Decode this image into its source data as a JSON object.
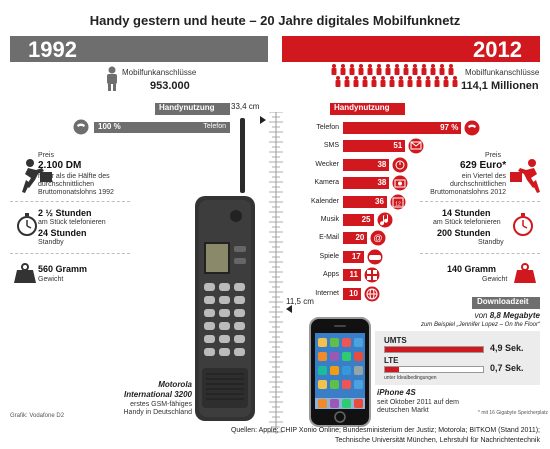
{
  "header": {
    "title": "Handy gestern und heute – 20 Jahre digitales Mobilfunknetz",
    "year_left": "1992",
    "year_right": "2012"
  },
  "subscriptions": {
    "label": "Mobilfunkanschlüsse",
    "left_value": "953.000",
    "right_value": "114,1 Millionen"
  },
  "usage": {
    "header": "Handynutzung",
    "left_row": {
      "label": "Telefon",
      "value": "100 %"
    },
    "rows": [
      {
        "label": "Telefon",
        "value": "97 %",
        "pct": 97,
        "icon": "phone-icon"
      },
      {
        "label": "SMS",
        "value": "51",
        "pct": 51,
        "icon": "envelope-icon"
      },
      {
        "label": "Wecker",
        "value": "38",
        "pct": 38,
        "icon": "alarm-clock-icon"
      },
      {
        "label": "Kamera",
        "value": "38",
        "pct": 38,
        "icon": "camera-icon"
      },
      {
        "label": "Kalender",
        "value": "36",
        "pct": 36,
        "icon": "calendar-icon"
      },
      {
        "label": "Musik",
        "value": "25",
        "pct": 25,
        "icon": "music-note-icon"
      },
      {
        "label": "E-Mail",
        "value": "20",
        "pct": 20,
        "icon": "at-sign-icon"
      },
      {
        "label": "Spiele",
        "value": "17",
        "pct": 17,
        "icon": "gamepad-icon"
      },
      {
        "label": "Apps",
        "value": "11",
        "pct": 11,
        "icon": "apps-icon"
      },
      {
        "label": "Internet",
        "value": "10",
        "pct": 10,
        "icon": "globe-icon"
      }
    ]
  },
  "heights": {
    "old": "33,4 cm",
    "new": "11,5 cm"
  },
  "price": {
    "label": "Preis",
    "left_value": "2.100 DM",
    "left_note": "mehr als die Hälfte des durchschnittlichen Bruttomonatslohns 1992",
    "right_value": "629 Euro*",
    "right_note": "ein Viertel des durchschnittlichen Bruttomonatslohns 2012"
  },
  "battery": {
    "left_talk": "2 ½ Stunden",
    "left_standby": "24 Stunden",
    "right_talk": "14 Stunden",
    "right_standby": "200 Stunden",
    "talk_note": "am Stück telefonieren",
    "standby_note": "Standby"
  },
  "weight": {
    "left": "560 Gramm",
    "right": "140 Gramm",
    "label": "Gewicht"
  },
  "download": {
    "header": "Downloadzeit",
    "size_prefix": "von",
    "size": "8,8 Megabyte",
    "example": "zum Beispiel „Jennifer Lopez – On the Floor“",
    "rows": [
      {
        "label": "UMTS",
        "value": "4,9 Sek.",
        "fraction": 1.0
      },
      {
        "label": "LTE",
        "value": "0,7 Sek.",
        "fraction": 0.14
      }
    ],
    "note": "unter Idealbedingungen"
  },
  "phones": {
    "old_name": "Motorola",
    "old_model": "International 3200",
    "old_desc": "erstes GSM-fähiges Handy in Deutschland",
    "new_name": "iPhone 4S",
    "new_desc": "seit Oktober 2011 auf dem deutschen Markt",
    "footnote": "* mit 16 Gigabyte Speicherplatz"
  },
  "credits": {
    "graphic": "Grafik: Vodafone D2",
    "sources_line1": "Quellen: Apple; CHIP Xonio Online; Bundesministerium der Justiz; Motorola; BITKOM (Stand 2011);",
    "sources_line2": "Technische Universität München, Lehrstuhl für Nachrichtentechnik"
  },
  "colors": {
    "accent": "#d0181e",
    "gray": "#6e6e6e"
  }
}
